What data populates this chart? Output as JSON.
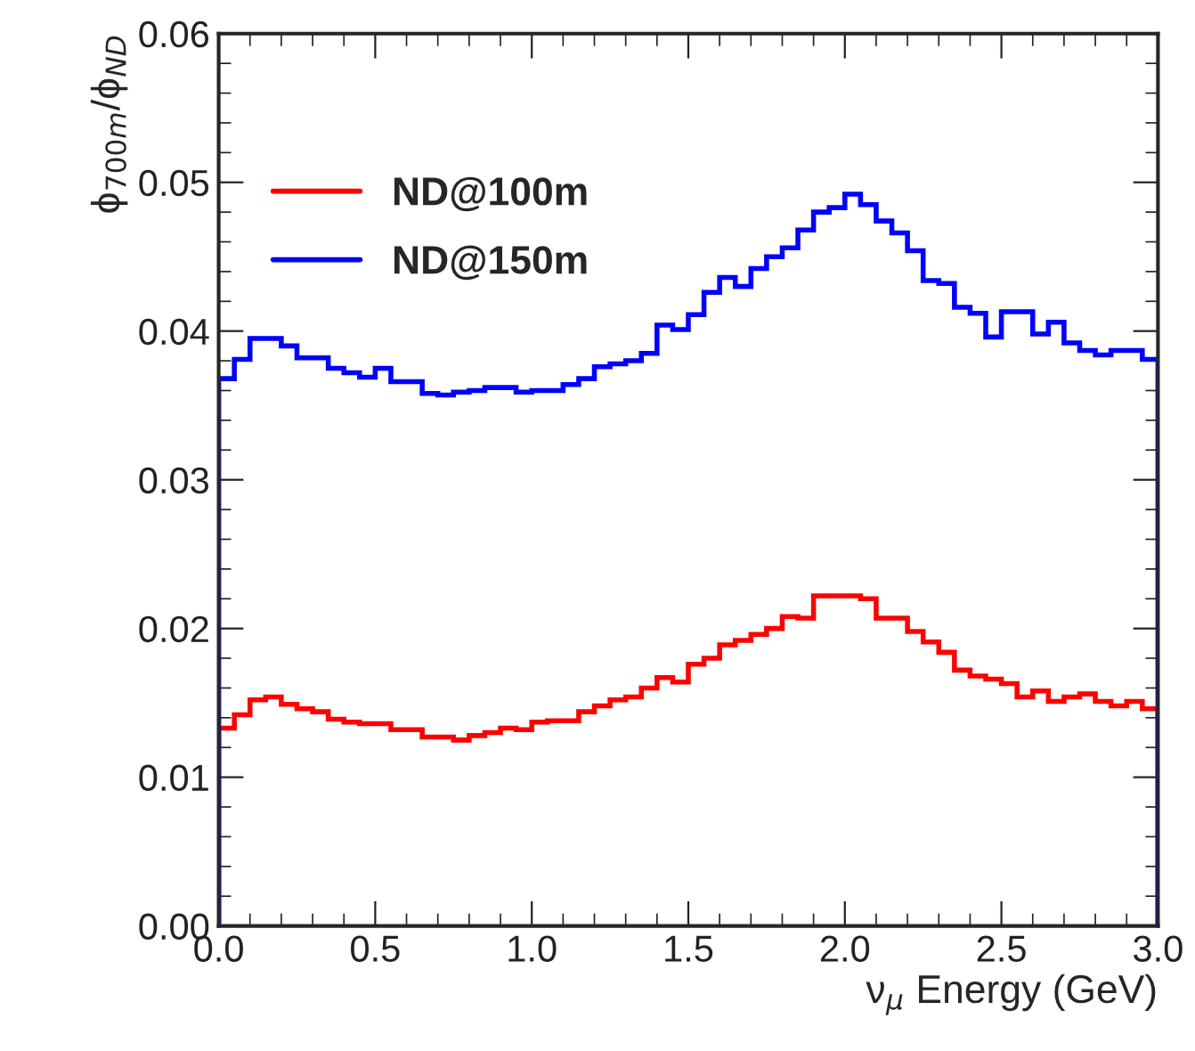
{
  "chart_data": {
    "type": "histogram",
    "xlabel": "ν$_{μ}$ Energy (GeV)",
    "ylabel": "ϕ$_{700m}$/ϕ$_{ND}$",
    "bins": [
      0,
      0.05,
      0.1,
      0.15,
      0.2,
      0.25,
      0.3,
      0.35,
      0.4,
      0.45,
      0.5,
      0.55,
      0.6,
      0.65,
      0.7,
      0.75,
      0.8,
      0.85,
      0.9,
      0.95,
      1.0,
      1.05,
      1.1,
      1.15,
      1.2,
      1.25,
      1.3,
      1.35,
      1.4,
      1.45,
      1.5,
      1.55,
      1.6,
      1.65,
      1.7,
      1.75,
      1.8,
      1.85,
      1.9,
      1.95,
      2.0,
      2.05,
      2.1,
      2.15,
      2.2,
      2.25,
      2.3,
      2.35,
      2.4,
      2.45,
      2.5,
      2.55,
      2.6,
      2.65,
      2.7,
      2.75,
      2.8,
      2.85,
      2.9,
      2.95,
      3.0
    ],
    "series": [
      {
        "name": "ND@100m",
        "color": "#ff0000",
        "values": [
          0.0133,
          0.0142,
          0.0152,
          0.0154,
          0.0149,
          0.0146,
          0.0144,
          0.0139,
          0.0137,
          0.0136,
          0.0136,
          0.0132,
          0.0132,
          0.0127,
          0.0127,
          0.0125,
          0.0128,
          0.013,
          0.0133,
          0.0132,
          0.0137,
          0.0138,
          0.0138,
          0.0144,
          0.0148,
          0.0152,
          0.0154,
          0.016,
          0.0167,
          0.0164,
          0.0176,
          0.018,
          0.0189,
          0.0192,
          0.0196,
          0.02,
          0.0208,
          0.0207,
          0.0222,
          0.0222,
          0.0222,
          0.022,
          0.0207,
          0.0207,
          0.0198,
          0.0191,
          0.0184,
          0.0172,
          0.0168,
          0.0166,
          0.0163,
          0.0154,
          0.0158,
          0.0151,
          0.0154,
          0.0156,
          0.0151,
          0.0148,
          0.0151,
          0.0146
        ]
      },
      {
        "name": "ND@150m",
        "color": "#0000ff",
        "values": [
          0.0368,
          0.0381,
          0.0395,
          0.0395,
          0.039,
          0.0382,
          0.0382,
          0.0375,
          0.0372,
          0.0369,
          0.0375,
          0.0366,
          0.0366,
          0.0358,
          0.0357,
          0.0359,
          0.036,
          0.0362,
          0.0362,
          0.0359,
          0.036,
          0.036,
          0.0364,
          0.0368,
          0.0376,
          0.0378,
          0.038,
          0.0385,
          0.0404,
          0.0401,
          0.0411,
          0.0426,
          0.0436,
          0.043,
          0.0442,
          0.045,
          0.0456,
          0.0468,
          0.048,
          0.0483,
          0.0492,
          0.0485,
          0.0474,
          0.0466,
          0.0454,
          0.0434,
          0.0432,
          0.0416,
          0.0412,
          0.0396,
          0.0413,
          0.0413,
          0.0398,
          0.0406,
          0.0392,
          0.0387,
          0.0384,
          0.0387,
          0.0387,
          0.0381
        ]
      }
    ],
    "xlim": [
      0,
      3
    ],
    "ylim": [
      0,
      0.06
    ],
    "xticks": [
      {
        "value": 0,
        "label": "0.0"
      },
      {
        "value": 0.5,
        "label": "0.5"
      },
      {
        "value": 1,
        "label": "1.0"
      },
      {
        "value": 1.5,
        "label": "1.5"
      },
      {
        "value": 2,
        "label": "2.0"
      },
      {
        "value": 2.5,
        "label": "2.5"
      },
      {
        "value": 3,
        "label": "3.0"
      }
    ],
    "yticks": [
      {
        "value": 0,
        "label": "0.00"
      },
      {
        "value": 0.01,
        "label": "0.01"
      },
      {
        "value": 0.02,
        "label": "0.02"
      },
      {
        "value": 0.03,
        "label": "0.03"
      },
      {
        "value": 0.04,
        "label": "0.04"
      },
      {
        "value": 0.05,
        "label": "0.05"
      },
      {
        "value": 0.06,
        "label": "0.06"
      }
    ],
    "legend": "top left",
    "grid": false
  }
}
